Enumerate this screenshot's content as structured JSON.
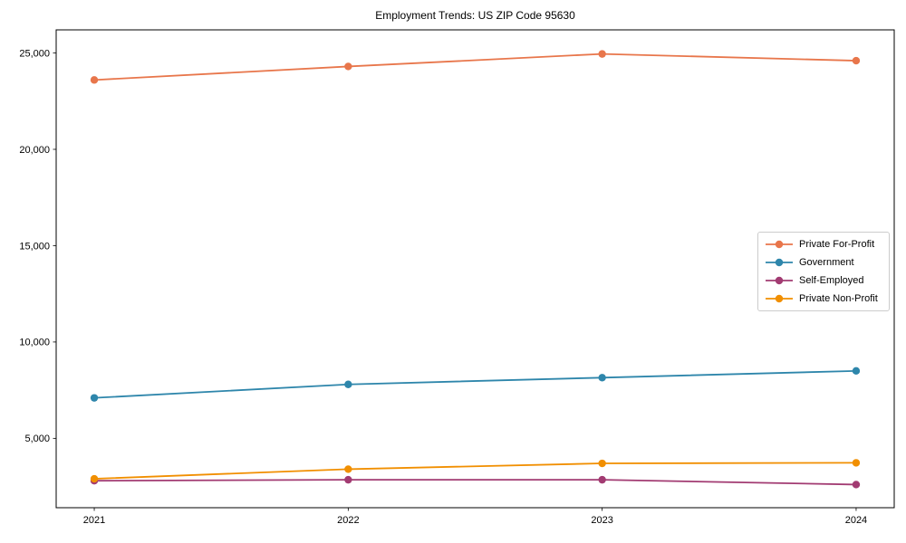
{
  "chart_data": {
    "type": "line",
    "title": "Employment Trends: US ZIP Code 95630",
    "categories": [
      "2021",
      "2022",
      "2023",
      "2024"
    ],
    "series": [
      {
        "name": "Private For-Profit",
        "color": "#E8764B",
        "values": [
          23600,
          24300,
          24950,
          24600
        ]
      },
      {
        "name": "Government",
        "color": "#2E86AB",
        "values": [
          7100,
          7800,
          8150,
          8500
        ]
      },
      {
        "name": "Self-Employed",
        "color": "#A23B72",
        "values": [
          2800,
          2850,
          2850,
          2600
        ]
      },
      {
        "name": "Private Non-Profit",
        "color": "#F18F01",
        "values": [
          2900,
          3400,
          3700,
          3730
        ]
      }
    ],
    "xlabel": "",
    "ylabel": "",
    "ylim": [
      1400,
      26200
    ],
    "yticks": [
      5000,
      10000,
      15000,
      20000,
      25000
    ],
    "ytick_labels": [
      "5,000",
      "10,000",
      "15,000",
      "20,000",
      "25,000"
    ],
    "grid": false,
    "legend_position": "center right",
    "marker": "circle"
  }
}
